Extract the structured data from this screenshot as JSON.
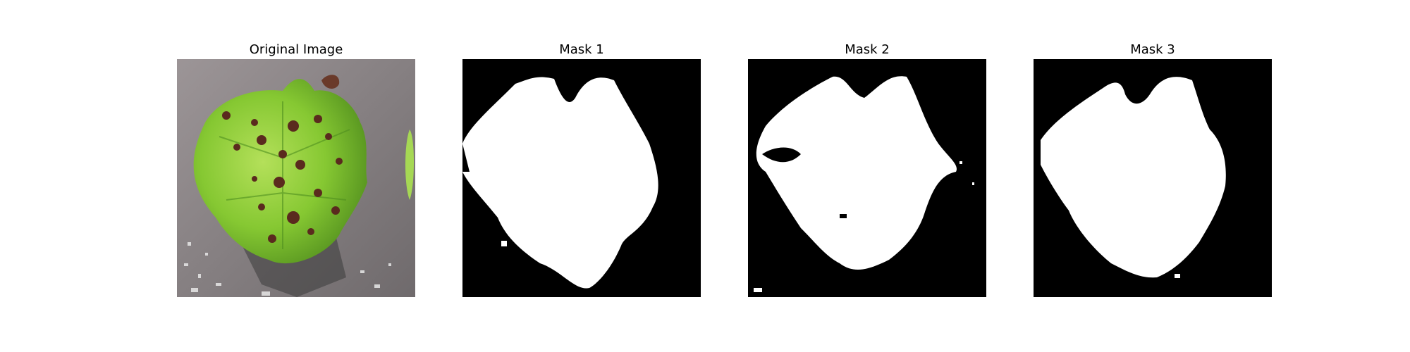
{
  "figure": {
    "panels": [
      {
        "title": "Original Image",
        "kind": "photo",
        "subject": "leaf-photo"
      },
      {
        "title": "Mask 1",
        "kind": "mask"
      },
      {
        "title": "Mask 2",
        "kind": "mask"
      },
      {
        "title": "Mask 3",
        "kind": "mask"
      }
    ]
  },
  "colors": {
    "figure_background": "#ffffff",
    "mask_background": "#000000",
    "mask_foreground": "#ffffff",
    "leaf_green": "#8fcf3a",
    "leaf_dark_green": "#4f8f1f",
    "spot_brown": "#5a2a1e",
    "table_gray": "#8a8486"
  }
}
